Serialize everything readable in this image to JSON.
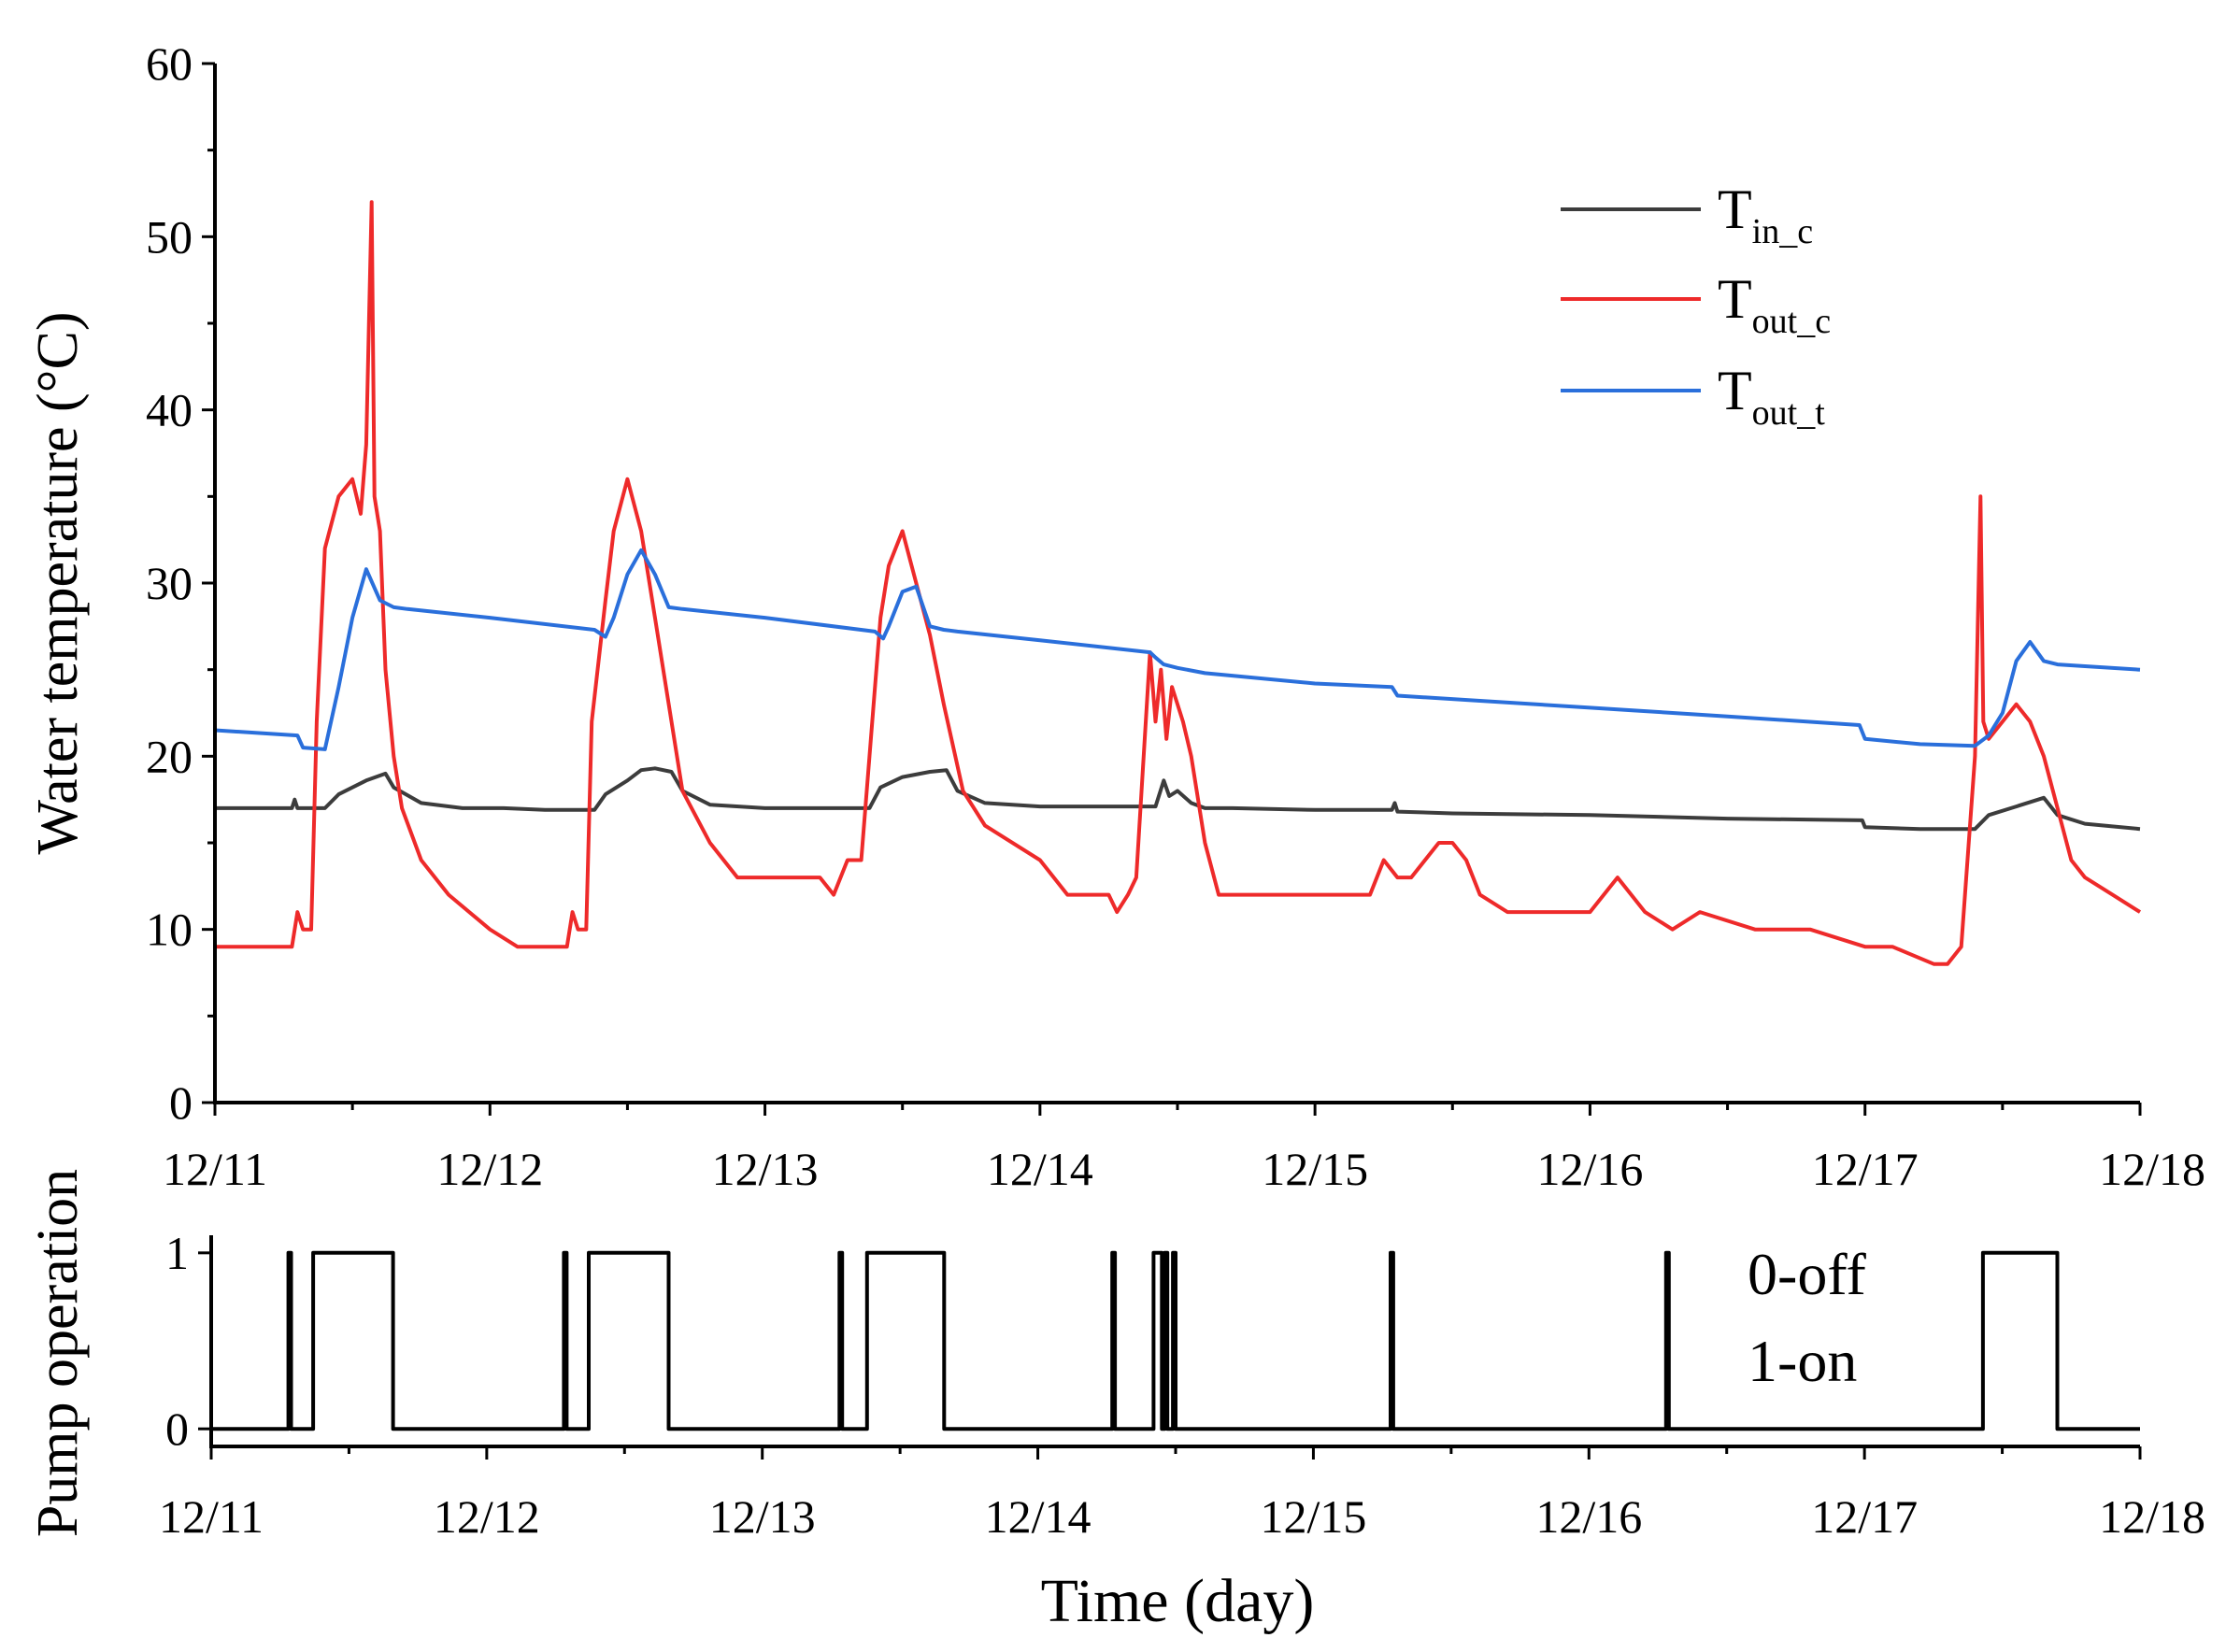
{
  "chart_data": [
    {
      "type": "line",
      "name": "water-temperature",
      "title": "",
      "xlabel": "",
      "ylabel": "Water temperature (°C)",
      "categories": [
        "12/11",
        "12/12",
        "12/13",
        "12/14",
        "12/15",
        "12/16",
        "12/17",
        "12/18"
      ],
      "xlim": [
        0,
        7
      ],
      "ylim": [
        0,
        60
      ],
      "yticks": [
        0,
        10,
        20,
        30,
        40,
        50,
        60
      ],
      "legend_position": "top-right",
      "series": [
        {
          "name": "T_in_c",
          "label_main": "T",
          "label_sub": "in_c",
          "color": "#3c3c3c",
          "x": [
            0,
            0.28,
            0.29,
            0.3,
            0.4,
            0.45,
            0.55,
            0.62,
            0.65,
            0.75,
            0.9,
            1.05,
            1.2,
            1.38,
            1.42,
            1.5,
            1.55,
            1.6,
            1.66,
            1.7,
            1.8,
            2.0,
            2.2,
            2.38,
            2.42,
            2.5,
            2.6,
            2.66,
            2.7,
            2.8,
            3.0,
            3.3,
            3.42,
            3.45,
            3.47,
            3.5,
            3.55,
            3.6,
            3.7,
            4.0,
            4.28,
            4.29,
            4.3,
            4.5,
            5.0,
            5.5,
            5.99,
            6.0,
            6.2,
            6.4,
            6.45,
            6.55,
            6.65,
            6.7,
            6.8,
            7.0
          ],
          "y": [
            17,
            17,
            17.5,
            17,
            17,
            17.8,
            18.6,
            19,
            18.2,
            17.3,
            17,
            17,
            16.9,
            16.9,
            17.8,
            18.6,
            19.2,
            19.3,
            19.1,
            18,
            17.2,
            17,
            17,
            17,
            18.2,
            18.8,
            19.1,
            19.2,
            18,
            17.3,
            17.1,
            17.1,
            17.1,
            18.6,
            17.7,
            18,
            17.3,
            17,
            17,
            16.9,
            16.9,
            17.3,
            16.8,
            16.7,
            16.6,
            16.4,
            16.3,
            15.9,
            15.8,
            15.8,
            16.6,
            17.1,
            17.6,
            16.6,
            16.1,
            15.8
          ]
        },
        {
          "name": "T_out_c",
          "label_main": "T",
          "label_sub": "out_c",
          "color": "#ee2a2a",
          "x": [
            0,
            0.28,
            0.3,
            0.32,
            0.35,
            0.37,
            0.4,
            0.45,
            0.5,
            0.53,
            0.55,
            0.57,
            0.58,
            0.6,
            0.62,
            0.65,
            0.68,
            0.75,
            0.85,
            1.0,
            1.1,
            1.28,
            1.3,
            1.32,
            1.35,
            1.37,
            1.42,
            1.45,
            1.5,
            1.55,
            1.6,
            1.65,
            1.7,
            1.8,
            1.9,
            2.1,
            2.2,
            2.25,
            2.3,
            2.35,
            2.42,
            2.45,
            2.5,
            2.55,
            2.6,
            2.65,
            2.72,
            2.8,
            3.0,
            3.1,
            3.25,
            3.28,
            3.32,
            3.35,
            3.4,
            3.42,
            3.44,
            3.46,
            3.48,
            3.5,
            3.52,
            3.55,
            3.6,
            3.65,
            3.7,
            4.0,
            4.2,
            4.25,
            4.3,
            4.35,
            4.45,
            4.5,
            4.55,
            4.6,
            4.7,
            4.8,
            4.9,
            5.0,
            5.1,
            5.2,
            5.3,
            5.4,
            5.6,
            5.8,
            6.0,
            6.1,
            6.25,
            6.3,
            6.35,
            6.4,
            6.42,
            6.43,
            6.45,
            6.5,
            6.55,
            6.6,
            6.65,
            6.7,
            6.75,
            6.8,
            6.9,
            7.0
          ],
          "y": [
            9,
            9,
            11,
            10,
            10,
            22,
            32,
            35,
            36,
            34,
            38,
            52,
            35,
            33,
            25,
            20,
            17,
            14,
            12,
            10,
            9,
            9,
            11,
            10,
            10,
            22,
            29,
            33,
            36,
            33,
            28,
            23,
            18,
            15,
            13,
            13,
            13,
            12,
            14,
            14,
            28,
            31,
            33,
            30,
            27,
            23,
            18,
            16,
            14,
            12,
            12,
            11,
            12,
            13,
            26,
            22,
            25,
            21,
            24,
            23,
            22,
            20,
            15,
            12,
            12,
            12,
            12,
            14,
            13,
            13,
            15,
            15,
            14,
            12,
            11,
            11,
            11,
            11,
            13,
            11,
            10,
            11,
            10,
            10,
            9,
            9,
            8,
            8,
            9,
            20,
            35,
            22,
            21,
            22,
            23,
            22,
            20,
            17,
            14,
            13,
            12,
            11
          ]
        },
        {
          "name": "T_out_t",
          "label_main": "T",
          "label_sub": "out_t",
          "color": "#2a6fdb",
          "x": [
            0,
            0.3,
            0.32,
            0.4,
            0.45,
            0.5,
            0.55,
            0.6,
            0.65,
            0.7,
            1.0,
            1.38,
            1.42,
            1.45,
            1.5,
            1.55,
            1.6,
            1.65,
            1.7,
            2.0,
            2.4,
            2.43,
            2.45,
            2.5,
            2.55,
            2.6,
            2.65,
            2.7,
            3.0,
            3.4,
            3.42,
            3.45,
            3.5,
            3.6,
            4.0,
            4.28,
            4.3,
            4.6,
            5.0,
            5.5,
            5.98,
            6.0,
            6.2,
            6.4,
            6.45,
            6.5,
            6.55,
            6.6,
            6.65,
            6.7,
            6.8,
            7.0
          ],
          "y": [
            21.5,
            21.2,
            20.5,
            20.4,
            24,
            28,
            30.8,
            29,
            28.6,
            28.5,
            28,
            27.3,
            26.9,
            28,
            30.5,
            31.9,
            30.5,
            28.6,
            28.5,
            28,
            27.2,
            26.8,
            27.5,
            29.5,
            29.8,
            27.5,
            27.3,
            27.2,
            26.7,
            26,
            25.7,
            25.3,
            25.1,
            24.8,
            24.2,
            24,
            23.5,
            23.2,
            22.8,
            22.3,
            21.8,
            21,
            20.7,
            20.6,
            21.2,
            22.5,
            25.5,
            26.6,
            25.5,
            25.3,
            25.2,
            25
          ]
        }
      ]
    },
    {
      "type": "line",
      "name": "pump-operation",
      "title": "",
      "xlabel": "Time (day)",
      "ylabel": "Pump operation",
      "categories": [
        "12/11",
        "12/12",
        "12/13",
        "12/14",
        "12/15",
        "12/16",
        "12/17",
        "12/18"
      ],
      "xlim": [
        0,
        7
      ],
      "ylim": [
        -0.1,
        1.1
      ],
      "yticks": [
        0,
        1
      ],
      "annotations": [
        "0-off",
        "1-on"
      ],
      "series": [
        {
          "name": "pump",
          "color": "#000000",
          "x": [
            0,
            0.28,
            0.28,
            0.29,
            0.29,
            0.37,
            0.37,
            0.66,
            0.66,
            1.28,
            1.28,
            1.29,
            1.29,
            1.37,
            1.37,
            1.66,
            1.66,
            2.28,
            2.28,
            2.29,
            2.29,
            2.38,
            2.38,
            2.66,
            2.66,
            3.27,
            3.27,
            3.28,
            3.28,
            3.42,
            3.42,
            3.45,
            3.45,
            3.46,
            3.46,
            3.47,
            3.47,
            3.49,
            3.49,
            3.5,
            3.5,
            4.28,
            4.28,
            4.29,
            4.29,
            5.28,
            5.28,
            5.29,
            5.29,
            6.43,
            6.43,
            6.7,
            6.7,
            7.0
          ],
          "y": [
            0,
            0,
            1,
            1,
            0,
            0,
            1,
            1,
            0,
            0,
            1,
            1,
            0,
            0,
            1,
            1,
            0,
            0,
            1,
            1,
            0,
            0,
            1,
            1,
            0,
            0,
            1,
            1,
            0,
            0,
            1,
            1,
            0,
            0,
            1,
            1,
            0,
            0,
            1,
            1,
            0,
            0,
            1,
            1,
            0,
            0,
            1,
            1,
            0,
            0,
            1,
            1,
            0,
            0
          ]
        }
      ]
    }
  ]
}
